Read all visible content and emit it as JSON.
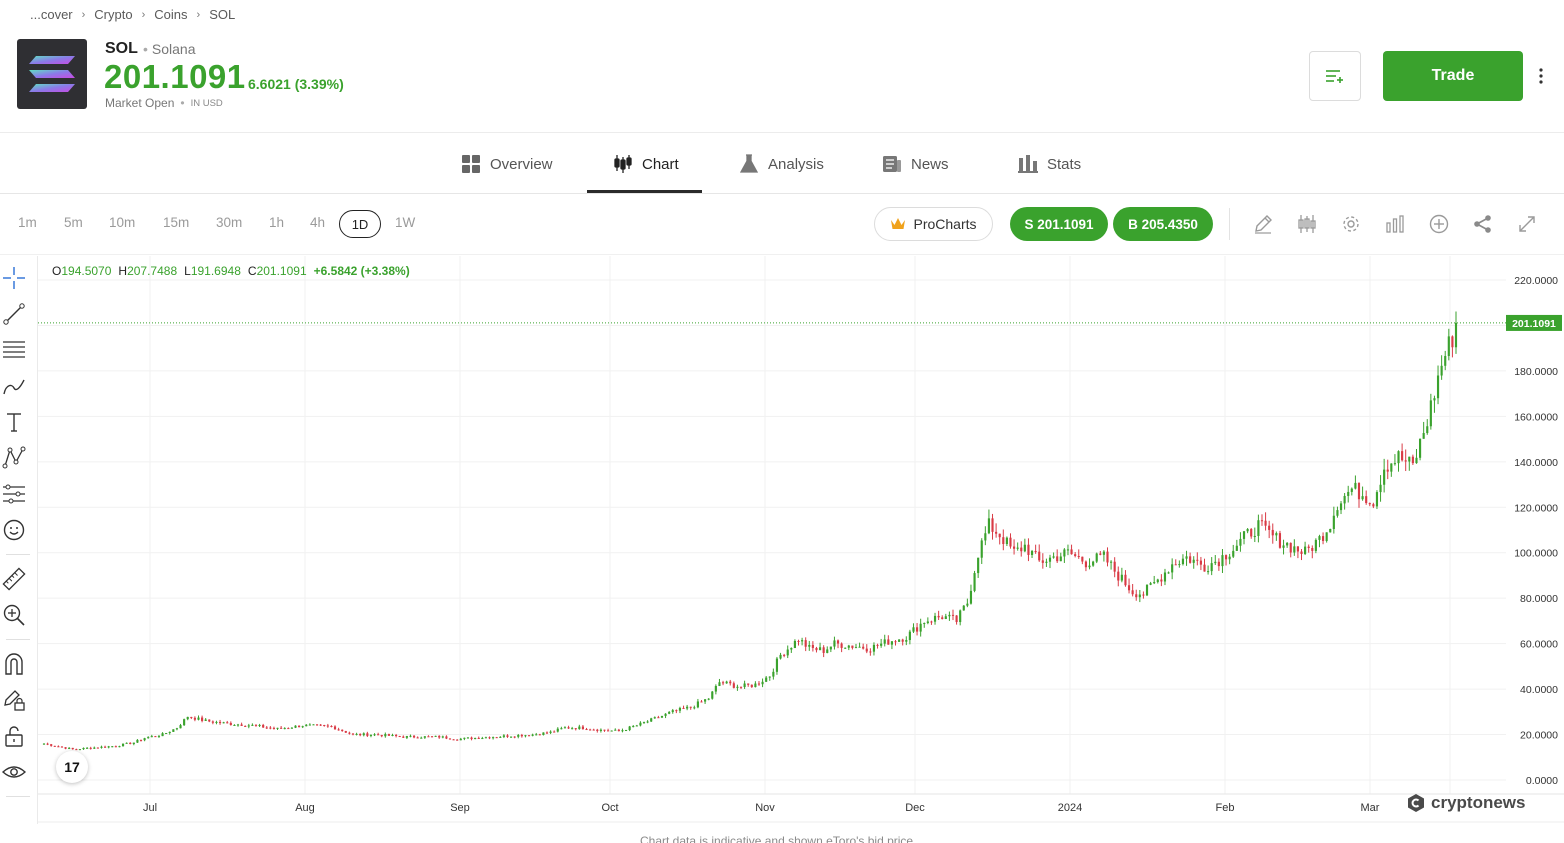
{
  "breadcrumb": [
    "...cover",
    "Crypto",
    "Coins",
    "SOL"
  ],
  "header": {
    "symbol": "SOL",
    "name": "Solana",
    "price": "201.1091",
    "change": "6.6021 (3.39%)",
    "market_status": "Market Open",
    "currency_note": "IN USD",
    "trade_label": "Trade"
  },
  "tabs": [
    {
      "label": "Overview",
      "icon": "grid-icon"
    },
    {
      "label": "Chart",
      "icon": "candlestick-icon",
      "active": true
    },
    {
      "label": "Analysis",
      "icon": "flask-icon"
    },
    {
      "label": "News",
      "icon": "newspaper-icon"
    },
    {
      "label": "Stats",
      "icon": "bar-chart-icon"
    }
  ],
  "toolbar": {
    "timeframes": [
      "1m",
      "5m",
      "10m",
      "15m",
      "30m",
      "1h",
      "4h",
      "1D",
      "1W"
    ],
    "active_timeframe": "1D",
    "prochart_label": "ProCharts",
    "sell_label": "S 201.1091",
    "buy_label": "B 205.4350",
    "icons": [
      "pencil-icon",
      "candles-icon",
      "settings-icon",
      "bar-chart-icon",
      "add-icon",
      "share-icon",
      "expand-icon"
    ]
  },
  "ohlc": {
    "o_label": "O",
    "o": "194.5070",
    "h_label": "H",
    "h": "207.7488",
    "l_label": "L",
    "l": "191.6948",
    "c_label": "C",
    "c": "201.1091",
    "chg": "+6.5842 (+3.38%)"
  },
  "left_tools": [
    "crosshair-icon",
    "trend-line-icon",
    "fib-levels-icon",
    "brush-icon",
    "text-icon",
    "pattern-icon",
    "forecast-icon",
    "emoji-icon",
    "ruler-icon",
    "zoom-icon",
    "magnet-icon",
    "lock-drawing-icon",
    "unlock-icon",
    "eye-icon"
  ],
  "chart_data": {
    "type": "candlestick",
    "y_ticks": [
      "220.0000",
      "200.0000",
      "180.0000",
      "160.0000",
      "140.0000",
      "120.0000",
      "100.0000",
      "80.0000",
      "60.0000",
      "40.0000",
      "20.0000",
      "0.0000"
    ],
    "ylim": [
      0,
      220
    ],
    "x_ticks": [
      "Jul",
      "Aug",
      "Sep",
      "Oct",
      "Nov",
      "Dec",
      "2024",
      "Feb",
      "Mar"
    ],
    "last_price_label": "201.1091",
    "last_price": 201.1091,
    "anchors": [
      [
        0,
        16
      ],
      [
        8,
        13.5
      ],
      [
        20,
        15
      ],
      [
        25,
        16.5
      ],
      [
        28,
        18.5
      ],
      [
        33,
        20
      ],
      [
        37,
        23
      ],
      [
        40,
        28
      ],
      [
        45,
        26
      ],
      [
        50,
        25
      ],
      [
        58,
        24
      ],
      [
        65,
        22.5
      ],
      [
        72,
        24
      ],
      [
        80,
        23.5
      ],
      [
        86,
        20
      ],
      [
        92,
        20
      ],
      [
        96,
        19.5
      ],
      [
        100,
        19
      ],
      [
        110,
        19
      ],
      [
        115,
        18
      ],
      [
        120,
        18.5
      ],
      [
        130,
        19.5
      ],
      [
        136,
        20
      ],
      [
        141,
        21
      ],
      [
        145,
        23
      ],
      [
        150,
        23
      ],
      [
        155,
        22
      ],
      [
        160,
        21.5
      ],
      [
        165,
        24
      ],
      [
        170,
        27
      ],
      [
        175,
        30
      ],
      [
        180,
        32
      ],
      [
        185,
        36
      ],
      [
        188,
        43
      ],
      [
        194,
        41
      ],
      [
        198,
        42
      ],
      [
        202,
        46
      ],
      [
        205,
        55
      ],
      [
        210,
        62
      ],
      [
        213,
        58
      ],
      [
        217,
        57
      ],
      [
        220,
        60
      ],
      [
        225,
        59
      ],
      [
        230,
        58
      ],
      [
        235,
        61
      ],
      [
        240,
        63
      ],
      [
        245,
        70
      ],
      [
        250,
        72
      ],
      [
        254,
        70
      ],
      [
        257,
        78
      ],
      [
        260,
        100
      ],
      [
        263,
        112
      ],
      [
        266,
        108
      ],
      [
        270,
        100
      ],
      [
        273,
        103
      ],
      [
        277,
        96
      ],
      [
        281,
        98
      ],
      [
        285,
        100
      ],
      [
        290,
        96
      ],
      [
        295,
        98
      ],
      [
        299,
        90
      ],
      [
        303,
        83
      ],
      [
        306,
        82
      ],
      [
        310,
        88
      ],
      [
        314,
        95
      ],
      [
        318,
        98
      ],
      [
        323,
        94
      ],
      [
        327,
        97
      ],
      [
        331,
        102
      ],
      [
        335,
        108
      ],
      [
        338,
        112
      ],
      [
        343,
        106
      ],
      [
        348,
        102
      ],
      [
        351,
        100
      ],
      [
        355,
        106
      ],
      [
        358,
        113
      ],
      [
        360,
        122
      ],
      [
        364,
        128
      ],
      [
        367,
        126
      ],
      [
        370,
        123
      ],
      [
        373,
        138
      ],
      [
        377,
        142
      ],
      [
        381,
        138
      ],
      [
        385,
        158
      ],
      [
        389,
        183
      ],
      [
        392,
        195
      ],
      [
        393,
        201
      ]
    ],
    "series_description": "SOL/USD daily candles from mid-June 2023 to mid-March 2024"
  },
  "watermark": "cryptonews",
  "footnote": "Chart data is indicative and shown eToro's bid price"
}
